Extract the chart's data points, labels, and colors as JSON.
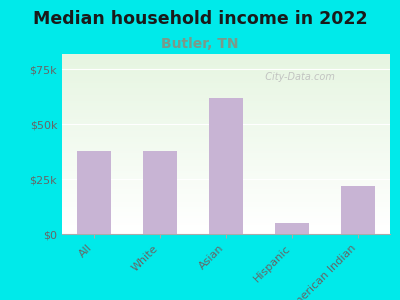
{
  "title": "Median household income in 2022",
  "subtitle": "Butler, TN",
  "categories": [
    "All",
    "White",
    "Asian",
    "Hispanic",
    "American Indian"
  ],
  "values": [
    38000,
    38000,
    62000,
    5000,
    22000
  ],
  "bar_color": "#c8b4d4",
  "title_fontsize": 12.5,
  "subtitle_fontsize": 10,
  "subtitle_color": "#7a9a8a",
  "title_color": "#1a1a1a",
  "bg_color": "#00eaea",
  "ylabel_color": "#666666",
  "tick_label_color": "#666666",
  "ylim": [
    0,
    82000
  ],
  "yticks": [
    0,
    25000,
    50000,
    75000
  ],
  "ytick_labels": [
    "$0",
    "$25k",
    "$50k",
    "$75k"
  ],
  "watermark": "  City-Data.com",
  "watermark_color": "#bbbbbb"
}
